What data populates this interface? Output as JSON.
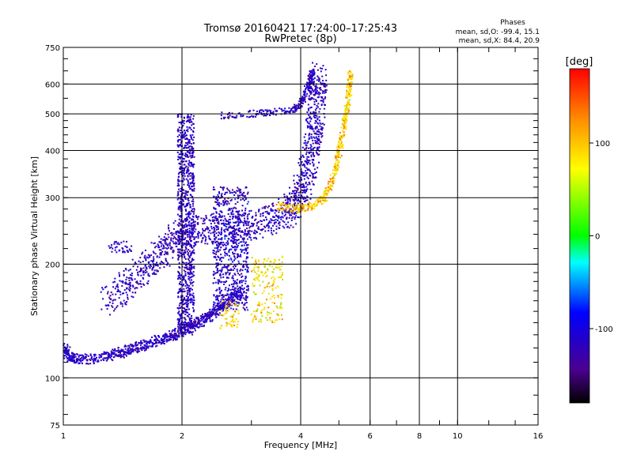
{
  "chart_data": {
    "type": "scatter",
    "title": "Tromsø 20160421 17:24:00–17:25:43",
    "subtitle": "RwPretec (8p)",
    "xlabel": "Frequency [MHz]",
    "ylabel": "Stationary phase Virtual Height [km]",
    "x_scale": "log",
    "y_scale": "log",
    "xlim": [
      1,
      16
    ],
    "ylim": [
      75,
      750
    ],
    "x_ticks": [
      1,
      2,
      4,
      6,
      8,
      10,
      16
    ],
    "y_ticks": [
      75,
      100,
      200,
      300,
      400,
      500,
      600,
      750
    ],
    "phases_box": {
      "heading": "Phases",
      "line_o": "mean, sd,O: -99.4, 15.1",
      "line_x": "mean, sd,X:  84.4, 20.9"
    },
    "colorbar": {
      "label": "[deg]",
      "range": [
        -180,
        180
      ],
      "ticks": [
        100,
        0,
        -100
      ]
    },
    "grid": true,
    "traces": {
      "o_low": [
        [
          1.0,
          120
        ],
        [
          1.05,
          113
        ],
        [
          1.15,
          112
        ],
        [
          1.3,
          114
        ],
        [
          1.45,
          118
        ],
        [
          1.6,
          122
        ],
        [
          1.8,
          127
        ],
        [
          2.0,
          133
        ],
        [
          2.2,
          140
        ],
        [
          2.4,
          148
        ],
        [
          2.6,
          158
        ],
        [
          2.8,
          170
        ]
      ],
      "o_main": [
        [
          1.3,
          160
        ],
        [
          1.5,
          180
        ],
        [
          1.7,
          205
        ],
        [
          1.9,
          230
        ],
        [
          2.1,
          245
        ],
        [
          2.4,
          248
        ],
        [
          2.8,
          250
        ],
        [
          3.2,
          258
        ],
        [
          3.6,
          270
        ],
        [
          3.9,
          290
        ],
        [
          4.1,
          330
        ],
        [
          4.25,
          390
        ],
        [
          4.35,
          470
        ],
        [
          4.42,
          560
        ],
        [
          4.46,
          640
        ]
      ],
      "o_upper": [
        [
          2.5,
          495
        ],
        [
          3.0,
          500
        ],
        [
          3.4,
          505
        ],
        [
          3.8,
          512
        ],
        [
          4.0,
          530
        ],
        [
          4.1,
          560
        ],
        [
          4.2,
          610
        ],
        [
          4.3,
          650
        ]
      ],
      "x_ray": [
        [
          3.5,
          285
        ],
        [
          3.9,
          280
        ],
        [
          4.3,
          285
        ],
        [
          4.6,
          300
        ],
        [
          4.85,
          340
        ],
        [
          5.0,
          390
        ],
        [
          5.1,
          440
        ],
        [
          5.2,
          490
        ],
        [
          5.3,
          560
        ],
        [
          5.35,
          640
        ]
      ]
    }
  }
}
